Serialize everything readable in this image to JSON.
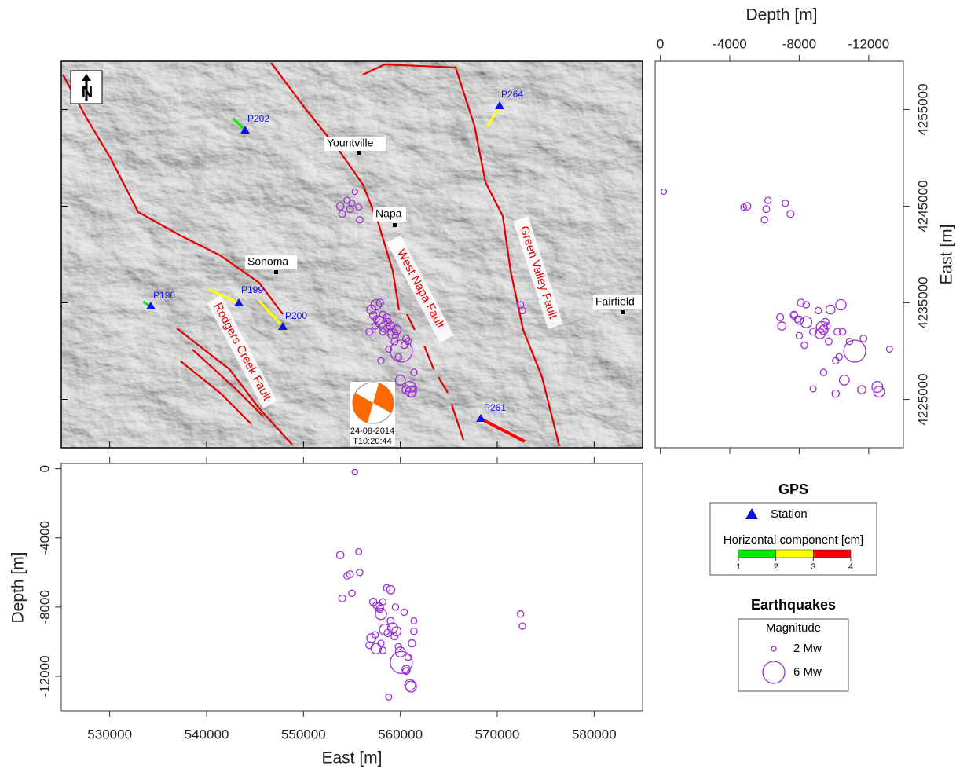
{
  "map": {
    "north_arrow": "N",
    "towns": [
      "Yountville",
      "Napa",
      "Sonoma",
      "Fairfield"
    ],
    "faults": [
      "West Napa Fault",
      "Green Valley Fault",
      "Rodgers Creek Fault"
    ],
    "stations": [
      "P202",
      "P264",
      "P198",
      "P199",
      "P200",
      "P261"
    ],
    "mainshock": {
      "date": "24-08-2014",
      "time": "T10:20:44"
    }
  },
  "chart_data": {
    "type": "scatter",
    "xlabel": "East [m]",
    "xlim": [
      525000,
      585000
    ],
    "xticks": [
      530000,
      540000,
      550000,
      560000,
      570000,
      580000
    ],
    "ylabel": "East [m]",
    "ylim": [
      4220000,
      4260000
    ],
    "yticks": [
      4225000,
      4235000,
      4245000,
      4255000
    ],
    "depth_label": "Depth [m]",
    "depthlim": [
      -14000,
      300
    ],
    "depthticks": [
      0,
      -4000,
      -8000,
      -12000
    ],
    "color": "#9b30d0",
    "earthquakes": {
      "east": [
        560100,
        558000,
        557500,
        557800,
        558400,
        559200,
        559600,
        561000,
        560600,
        561200,
        561400,
        555300,
        553800,
        554500,
        555700,
        555800,
        554000,
        555000,
        554800,
        557200,
        557500,
        558600,
        557900,
        558200,
        559000,
        558700,
        559400,
        559000,
        557400,
        556800,
        558200,
        560600,
        560800,
        561400,
        560400,
        558000,
        558800,
        572400,
        572600,
        559500,
        557000,
        559800,
        560000,
        561100
      ],
      "north": [
        4230000,
        4233000,
        4234800,
        4233200,
        4232500,
        4231800,
        4232200,
        4226300,
        4226000,
        4225600,
        4226100,
        4246500,
        4245000,
        4245600,
        4244900,
        4243600,
        4244200,
        4245300,
        4244700,
        4233700,
        4233300,
        4233500,
        4235000,
        4233800,
        4232000,
        4233000,
        4231000,
        4232600,
        4232600,
        4232000,
        4232000,
        4231300,
        4231000,
        4227800,
        4230600,
        4229000,
        4230200,
        4234800,
        4234200,
        4231600,
        4234300,
        4229400,
        4227000,
        4225800
      ],
      "depth": [
        -11200,
        -8400,
        -10400,
        -8000,
        -9300,
        -9200,
        -9400,
        -12500,
        -11600,
        -10100,
        -8800,
        -200,
        -5000,
        -6200,
        -4800,
        -6000,
        -7500,
        -7200,
        -6100,
        -7700,
        -7900,
        -6900,
        -8100,
        -7700,
        -8800,
        -9500,
        -9700,
        -7000,
        -9600,
        -10200,
        -10500,
        -11700,
        -10900,
        -9400,
        -8300,
        -10100,
        -13200,
        -8400,
        -9100,
        -8000,
        -9800,
        -10300,
        -10600,
        -12600
      ],
      "magnitude": [
        6.0,
        3.5,
        3.3,
        2.8,
        3.4,
        3.2,
        3.0,
        3.4,
        2.8,
        2.6,
        2.3,
        2.2,
        2.6,
        2.4,
        2.3,
        2.4,
        2.5,
        2.4,
        2.5,
        2.6,
        2.4,
        2.5,
        2.6,
        2.4,
        2.5,
        2.6,
        2.5,
        2.8,
        2.4,
        2.5,
        2.4,
        2.5,
        2.4,
        2.4,
        2.4,
        2.4,
        2.3,
        2.4,
        2.4,
        2.4,
        3.0,
        2.4,
        3.2,
        3.4
      ]
    },
    "legend": {
      "gps_title": "GPS",
      "station": "Station",
      "component_label": "Horizontal component [cm]",
      "colorbar_ticks": [
        1,
        2,
        3,
        4
      ],
      "colorbar_colors": [
        "#00ee00",
        "#ffff00",
        "#ff0000"
      ],
      "eq_title": "Earthquakes",
      "magnitude_label": "Magnitude",
      "sizes": [
        {
          "value": 2,
          "label": "2 Mw"
        },
        {
          "value": 6,
          "label": "6 Mw"
        }
      ]
    }
  }
}
